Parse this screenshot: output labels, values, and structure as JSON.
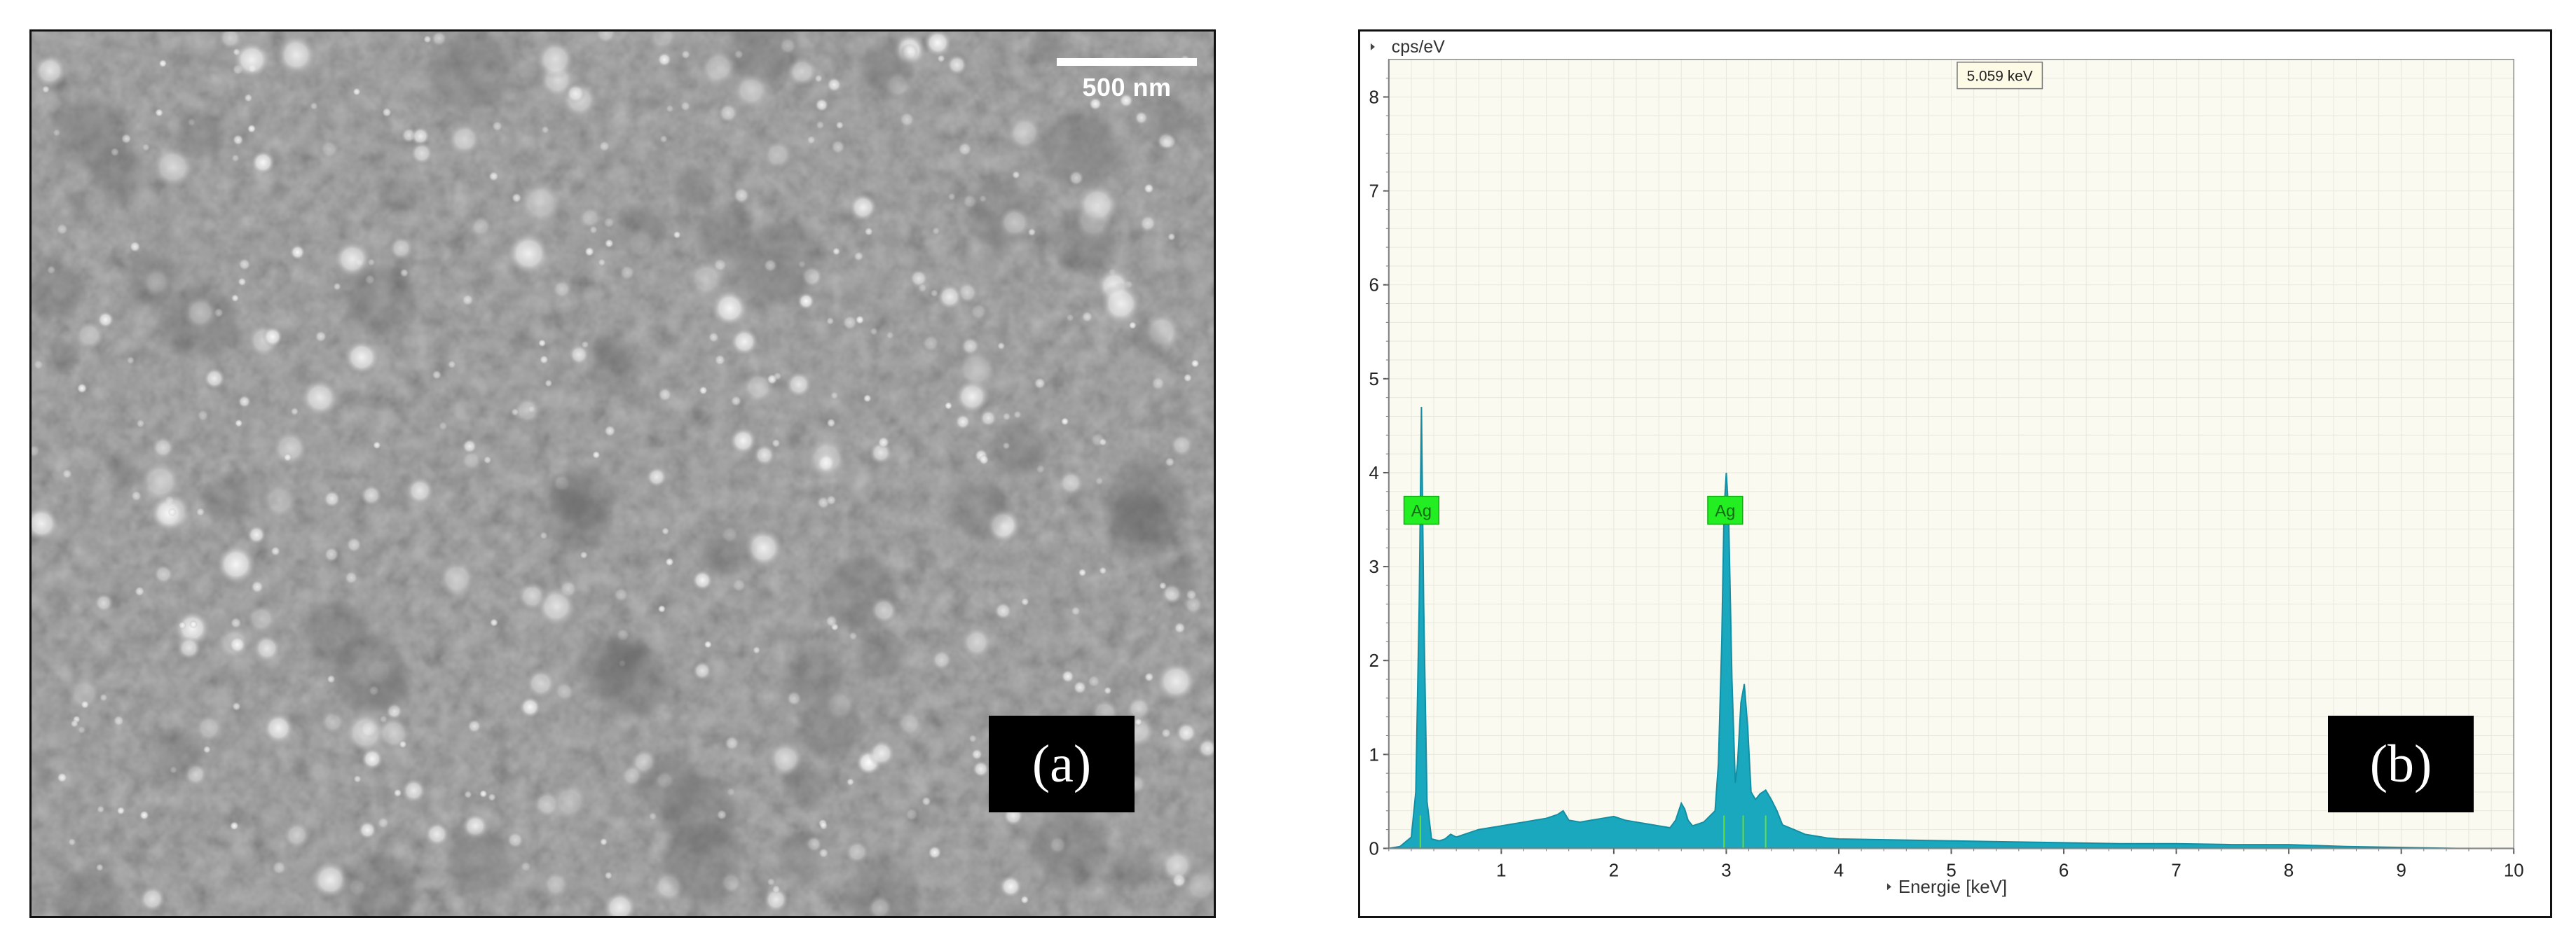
{
  "panels": {
    "sem": {
      "label": "(a)",
      "scale_bar": "500 nm"
    },
    "eds": {
      "label": "(b)"
    }
  },
  "chart_data": {
    "type": "area",
    "xlabel": "Energie [keV]",
    "ylabel": "cps/eV",
    "xlim": [
      0,
      10
    ],
    "ylim": [
      0,
      8.4
    ],
    "xticks": [
      1,
      2,
      3,
      4,
      5,
      6,
      7,
      8,
      9,
      10
    ],
    "yticks": [
      0,
      1,
      2,
      3,
      4,
      5,
      6,
      7,
      8
    ],
    "grid": true,
    "cursor_readout": "5.059 keV",
    "series_color": "#1aa8bf",
    "label_color": "#22ee22",
    "x": [
      0.0,
      0.1,
      0.2,
      0.24,
      0.27,
      0.29,
      0.31,
      0.34,
      0.38,
      0.45,
      0.5,
      0.55,
      0.6,
      0.7,
      0.8,
      0.9,
      1.0,
      1.1,
      1.2,
      1.3,
      1.4,
      1.5,
      1.55,
      1.6,
      1.7,
      1.8,
      1.9,
      2.0,
      2.1,
      2.2,
      2.3,
      2.4,
      2.5,
      2.55,
      2.6,
      2.63,
      2.66,
      2.7,
      2.8,
      2.9,
      2.93,
      2.96,
      2.98,
      3.0,
      3.02,
      3.05,
      3.08,
      3.1,
      3.13,
      3.16,
      3.19,
      3.22,
      3.26,
      3.3,
      3.35,
      3.4,
      3.45,
      3.5,
      3.6,
      3.7,
      3.8,
      3.9,
      4.0,
      4.5,
      5.0,
      5.5,
      6.0,
      6.5,
      7.0,
      7.5,
      8.0,
      8.5,
      9.0,
      9.5,
      10.0
    ],
    "y": [
      0.0,
      0.02,
      0.12,
      0.6,
      2.6,
      4.7,
      2.6,
      0.5,
      0.1,
      0.08,
      0.1,
      0.15,
      0.12,
      0.16,
      0.2,
      0.22,
      0.24,
      0.26,
      0.28,
      0.3,
      0.32,
      0.36,
      0.4,
      0.3,
      0.28,
      0.3,
      0.32,
      0.34,
      0.3,
      0.28,
      0.26,
      0.24,
      0.22,
      0.3,
      0.48,
      0.42,
      0.3,
      0.24,
      0.28,
      0.4,
      0.9,
      2.2,
      3.6,
      4.0,
      3.6,
      1.8,
      0.7,
      0.9,
      1.55,
      1.75,
      1.3,
      0.6,
      0.52,
      0.58,
      0.62,
      0.52,
      0.4,
      0.25,
      0.2,
      0.15,
      0.13,
      0.11,
      0.1,
      0.09,
      0.08,
      0.07,
      0.06,
      0.05,
      0.05,
      0.04,
      0.04,
      0.02,
      0.01,
      0.0,
      0.0
    ],
    "annotations": [
      {
        "text": "Ag",
        "x": 0.16,
        "y": 3.6
      },
      {
        "text": "Ag",
        "x": 2.86,
        "y": 3.6
      }
    ]
  }
}
